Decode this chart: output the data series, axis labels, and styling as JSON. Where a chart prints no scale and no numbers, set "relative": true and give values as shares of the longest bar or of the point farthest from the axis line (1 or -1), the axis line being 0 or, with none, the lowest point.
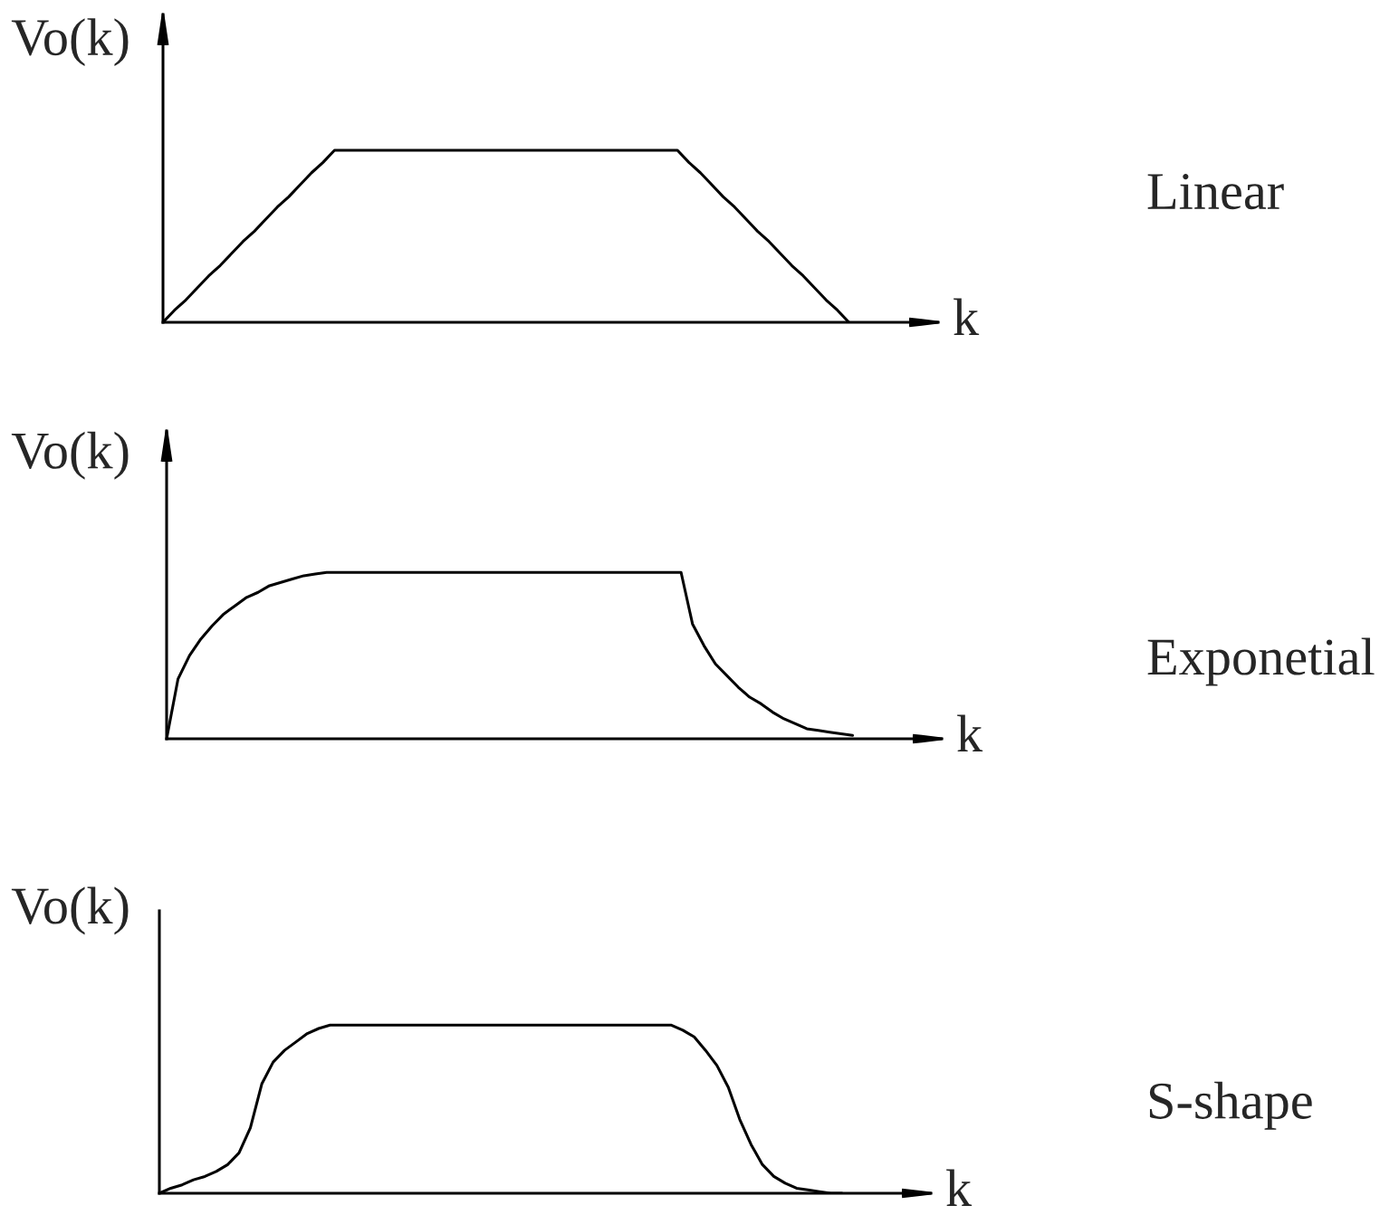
{
  "chart_data": [
    {
      "type": "line",
      "annotations": [
        "Linear"
      ],
      "xlabel": "k",
      "ylabel": "Vo(k)",
      "relative": true,
      "categories": [
        null,
        null,
        null,
        null,
        null,
        null,
        null,
        null,
        null,
        null,
        null,
        null,
        null,
        null,
        null,
        null,
        null,
        null,
        null,
        null,
        null,
        null,
        null,
        null,
        null,
        null,
        null,
        null,
        null,
        null,
        null,
        null,
        null,
        null,
        null,
        null,
        null,
        null,
        null,
        null,
        null,
        null,
        null,
        null,
        null,
        null,
        null,
        null,
        null,
        null,
        null,
        null,
        null,
        null,
        null,
        null,
        null,
        null,
        null,
        null,
        null
      ],
      "series": [
        {
          "color": "#000000",
          "values": [
            0,
            0.07,
            0.13,
            0.2,
            0.27,
            0.33,
            0.4,
            0.47,
            0.53,
            0.6,
            0.67,
            0.73,
            0.8,
            0.87,
            0.93,
            1,
            1,
            1,
            1,
            1,
            1,
            1,
            1,
            1,
            1,
            1,
            1,
            1,
            1,
            1,
            1,
            1,
            1,
            1,
            1,
            1,
            1,
            1,
            1,
            1,
            1,
            1,
            1,
            1,
            1,
            1,
            0.93,
            0.87,
            0.8,
            0.73,
            0.67,
            0.6,
            0.53,
            0.47,
            0.4,
            0.33,
            0.27,
            0.2,
            0.13,
            0.07,
            0
          ]
        }
      ]
    },
    {
      "type": "line",
      "annotations": [
        "Exponetial"
      ],
      "xlabel": "k",
      "ylabel": "Vo(k)",
      "relative": true,
      "categories": [
        null,
        null,
        null,
        null,
        null,
        null,
        null,
        null,
        null,
        null,
        null,
        null,
        null,
        null,
        null,
        null,
        null,
        null,
        null,
        null,
        null,
        null,
        null,
        null,
        null,
        null,
        null,
        null,
        null,
        null,
        null,
        null,
        null,
        null,
        null,
        null,
        null,
        null,
        null,
        null,
        null,
        null,
        null,
        null,
        null,
        null,
        null,
        null,
        null,
        null,
        null,
        null,
        null,
        null,
        null,
        null,
        null,
        null,
        null,
        null,
        null
      ],
      "series": [
        {
          "color": "#000000",
          "values": [
            0,
            0.36,
            0.5,
            0.6,
            0.68,
            0.75,
            0.8,
            0.85,
            0.88,
            0.92,
            0.94,
            0.96,
            0.98,
            0.99,
            1,
            1,
            1,
            1,
            1,
            1,
            1,
            1,
            1,
            1,
            1,
            1,
            1,
            1,
            1,
            1,
            1,
            1,
            1,
            1,
            1,
            1,
            1,
            1,
            1,
            1,
            1,
            1,
            1,
            1,
            1,
            1,
            0.69,
            0.56,
            0.45,
            0.38,
            0.31,
            0.25,
            0.21,
            0.16,
            0.12,
            0.09,
            0.06,
            0.05,
            0.04,
            0.03,
            0.02
          ]
        }
      ]
    },
    {
      "type": "line",
      "annotations": [
        "S-shape"
      ],
      "xlabel": "k",
      "ylabel": "Vo(k)",
      "relative": true,
      "categories": [
        null,
        null,
        null,
        null,
        null,
        null,
        null,
        null,
        null,
        null,
        null,
        null,
        null,
        null,
        null,
        null,
        null,
        null,
        null,
        null,
        null,
        null,
        null,
        null,
        null,
        null,
        null,
        null,
        null,
        null,
        null,
        null,
        null,
        null,
        null,
        null,
        null,
        null,
        null,
        null,
        null,
        null,
        null,
        null,
        null,
        null,
        null,
        null,
        null,
        null,
        null,
        null,
        null,
        null,
        null,
        null,
        null,
        null,
        null,
        null,
        null
      ],
      "series": [
        {
          "color": "#000000",
          "values": [
            0,
            0.03,
            0.05,
            0.08,
            0.1,
            0.13,
            0.17,
            0.24,
            0.39,
            0.65,
            0.78,
            0.85,
            0.9,
            0.95,
            0.98,
            1,
            1,
            1,
            1,
            1,
            1,
            1,
            1,
            1,
            1,
            1,
            1,
            1,
            1,
            1,
            1,
            1,
            1,
            1,
            1,
            1,
            1,
            1,
            1,
            1,
            1,
            1,
            1,
            1,
            1,
            1,
            0.97,
            0.93,
            0.85,
            0.76,
            0.63,
            0.44,
            0.29,
            0.17,
            0.1,
            0.06,
            0.03,
            0.02,
            0.01,
            0,
            0
          ]
        }
      ]
    }
  ]
}
